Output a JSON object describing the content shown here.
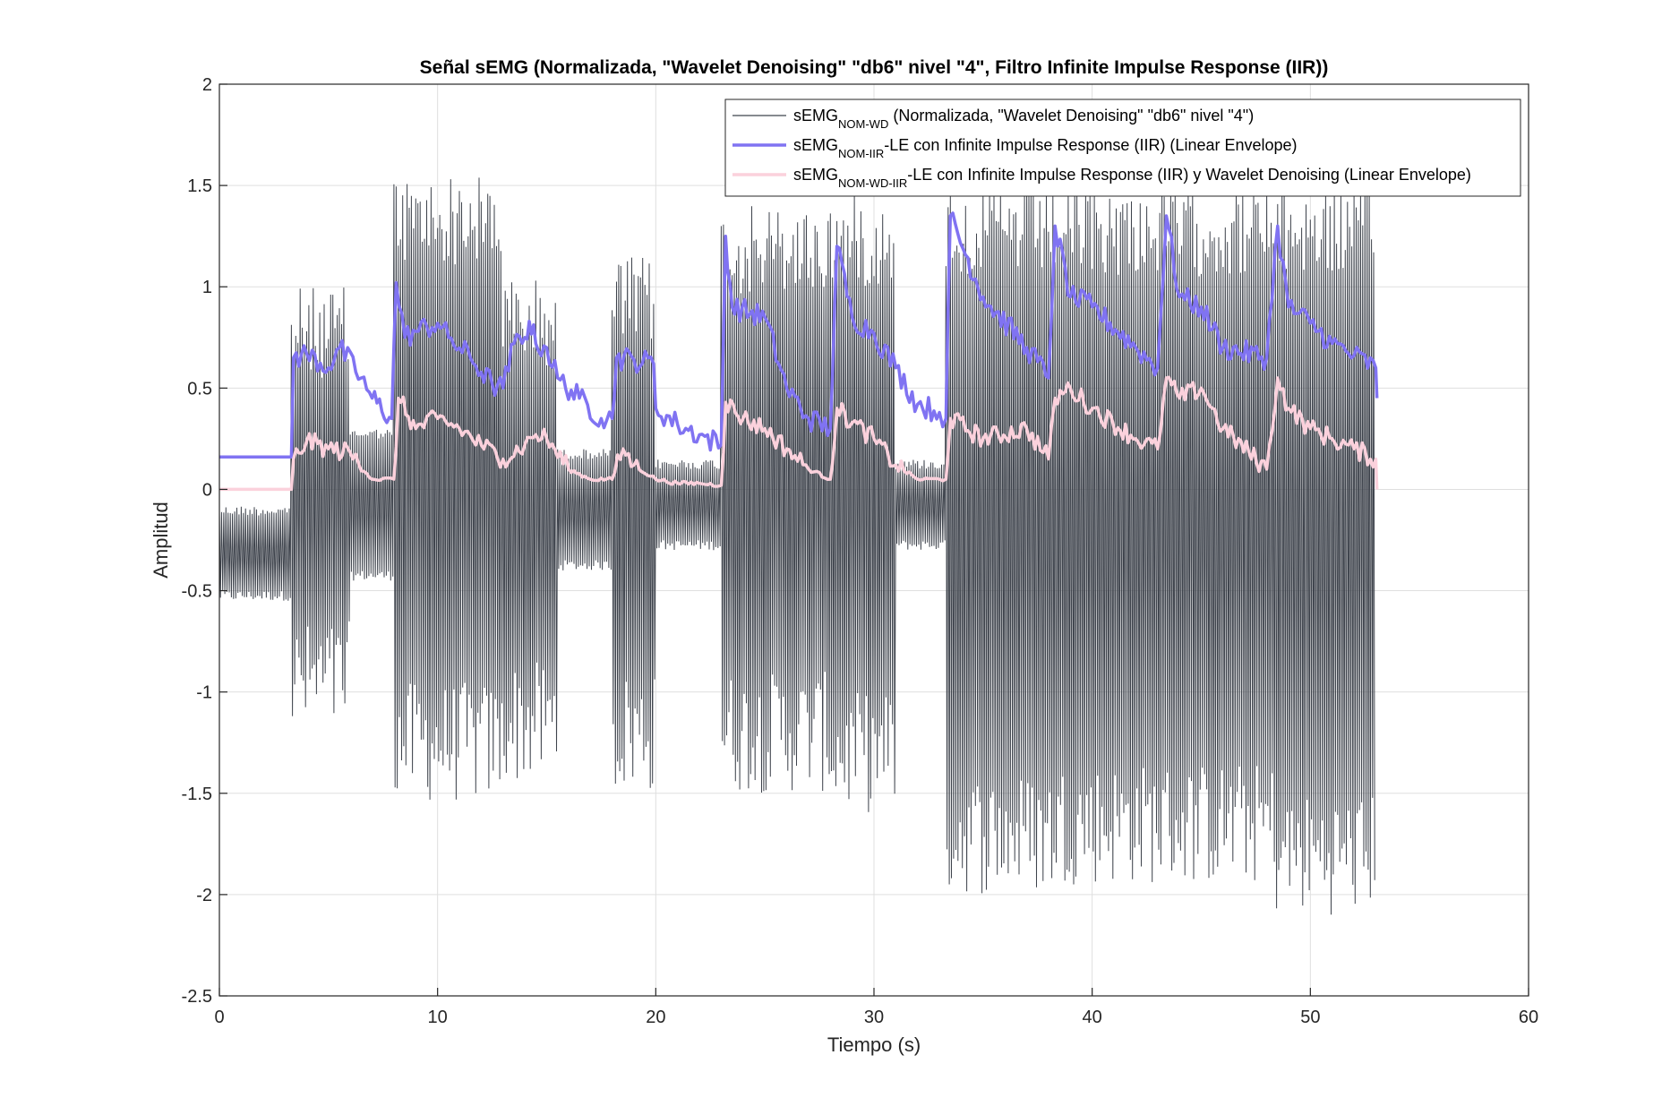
{
  "chart_data": {
    "type": "line",
    "title": "Señal sEMG (Normalizada, \"Wavelet Denoising\" \"db6\" nivel \"4\", Filtro Infinite Impulse Response (IIR))",
    "xlabel": "Tiempo (s)",
    "ylabel": "Amplitud",
    "xlim": [
      0,
      60
    ],
    "ylim": [
      -2.5,
      2
    ],
    "xticks": [
      0,
      10,
      20,
      30,
      40,
      50,
      60
    ],
    "xtick_labels": [
      "0",
      "10",
      "20",
      "30",
      "40",
      "50",
      "60"
    ],
    "yticks": [
      -2.5,
      -2,
      -1.5,
      -1,
      -0.5,
      0,
      0.5,
      1,
      1.5,
      2
    ],
    "ytick_labels": [
      "-2.5",
      "-2",
      "-1.5",
      "-1",
      "-0.5",
      "0",
      "0.5",
      "1",
      "1.5",
      "2"
    ],
    "grid": true,
    "legend_position": "top-right",
    "series": [
      {
        "name": "sEMG_NOM-WD (Normalizada, \"Wavelet Denoising\" \"db6\" nivel \"4\")",
        "legend": {
          "base": "sEMG",
          "sub": "NOM-WD",
          "rest": " (Normalizada, \"Wavelet Denoising\" \"db6\" nivel \"4\")"
        },
        "color": "#3f444d",
        "style": "thin",
        "bursts": [
          {
            "x": [
              0.0,
              3.3
            ],
            "hi": -0.08,
            "lo": -0.55
          },
          {
            "x": [
              3.3,
              6.0
            ],
            "hi": 1.0,
            "lo": -1.25
          },
          {
            "x": [
              6.0,
              8.0
            ],
            "hi": 0.3,
            "lo": -0.45
          },
          {
            "x": [
              8.0,
              13.0
            ],
            "hi": 1.55,
            "lo": -1.55
          },
          {
            "x": [
              13.0,
              15.5
            ],
            "hi": 1.05,
            "lo": -1.45
          },
          {
            "x": [
              15.5,
              18.0
            ],
            "hi": 0.2,
            "lo": -0.4
          },
          {
            "x": [
              18.0,
              20.0
            ],
            "hi": 1.15,
            "lo": -1.5
          },
          {
            "x": [
              20.0,
              23.0
            ],
            "hi": 0.15,
            "lo": -0.3
          },
          {
            "x": [
              23.0,
              28.0
            ],
            "hi": 1.4,
            "lo": -1.5
          },
          {
            "x": [
              28.0,
              31.0
            ],
            "hi": 1.45,
            "lo": -1.6
          },
          {
            "x": [
              31.0,
              33.3
            ],
            "hi": 0.15,
            "lo": -0.3
          },
          {
            "x": [
              33.3,
              38.3
            ],
            "hi": 1.5,
            "lo": -2.0
          },
          {
            "x": [
              38.3,
              43.3
            ],
            "hi": 1.5,
            "lo": -1.95
          },
          {
            "x": [
              43.3,
              48.3
            ],
            "hi": 1.5,
            "lo": -1.95
          },
          {
            "x": [
              48.3,
              53.0
            ],
            "hi": 1.5,
            "lo": -2.1
          }
        ]
      },
      {
        "name": "sEMG_NOM-IIR-LE con Infinite Impulse Response (IIR) (Linear Envelope)",
        "legend": {
          "base": "sEMG",
          "sub": "NOM-IIR",
          "rest": "-LE con Infinite Impulse Response (IIR) (Linear Envelope)"
        },
        "color": "#8073f2",
        "style": "thick",
        "x": [
          0,
          3.3,
          3.4,
          4,
          5,
          5.5,
          6.5,
          7,
          7.9,
          8.1,
          8.5,
          9,
          10,
          10.5,
          11.5,
          12.5,
          13,
          13.5,
          14,
          14.2,
          14.5,
          15,
          15.5,
          16.5,
          17.5,
          18,
          18.2,
          19,
          19.9,
          20,
          21,
          22,
          23,
          23.2,
          23.5,
          25,
          26,
          27,
          28,
          28.3,
          29,
          30,
          31,
          32,
          33,
          33.3,
          33.5,
          35,
          37,
          38,
          38.3,
          39,
          40,
          42,
          43,
          43.4,
          44,
          45,
          46,
          48,
          48.5,
          49,
          50,
          51,
          52,
          53,
          53.05
        ],
        "y": [
          0.16,
          0.16,
          0.65,
          0.67,
          0.6,
          0.7,
          0.55,
          0.45,
          0.35,
          1.02,
          0.75,
          0.78,
          0.82,
          0.75,
          0.65,
          0.52,
          0.5,
          0.72,
          0.75,
          0.83,
          0.72,
          0.7,
          0.55,
          0.45,
          0.35,
          0.35,
          0.65,
          0.64,
          0.62,
          0.4,
          0.32,
          0.27,
          0.22,
          1.25,
          0.9,
          0.85,
          0.5,
          0.35,
          0.3,
          1.2,
          0.85,
          0.77,
          0.6,
          0.42,
          0.38,
          0.35,
          1.35,
          0.95,
          0.7,
          0.55,
          1.3,
          0.95,
          0.9,
          0.7,
          0.6,
          1.35,
          0.95,
          0.9,
          0.7,
          0.65,
          1.3,
          0.9,
          0.82,
          0.72,
          0.66,
          0.6,
          0.45
        ],
        "jitter": 0.12
      },
      {
        "name": "sEMG_NOM-WD-IIR-LE con Infinite Impulse Response (IIR) y Wavelet Denoising (Linear Envelope)",
        "legend": {
          "base": "sEMG",
          "sub": "NOM-WD-IIR",
          "rest": "-LE con Infinite Impulse Response (IIR) y Wavelet Denoising (Linear Envelope)"
        },
        "color": "#fbd1dc",
        "style": "thick",
        "x": [
          0,
          3.3,
          3.4,
          4,
          5,
          6,
          7,
          8,
          8.2,
          9,
          10,
          11,
          12,
          13,
          14,
          14.5,
          15,
          16,
          17,
          18,
          18.5,
          19,
          20,
          21,
          22,
          23,
          23.2,
          24,
          25,
          26,
          27,
          28,
          28.3,
          29,
          30,
          31,
          32,
          33,
          33.3,
          33.5,
          35,
          37,
          38,
          38.3,
          39,
          40,
          42,
          43,
          43.4,
          44,
          45,
          46,
          48,
          48.5,
          49,
          50,
          51,
          52,
          53,
          53.05
        ],
        "y": [
          0,
          0,
          0.15,
          0.24,
          0.2,
          0.18,
          0.05,
          0.05,
          0.45,
          0.3,
          0.35,
          0.3,
          0.22,
          0.15,
          0.22,
          0.27,
          0.25,
          0.1,
          0.05,
          0.05,
          0.2,
          0.12,
          0.05,
          0.03,
          0.03,
          0.02,
          0.43,
          0.35,
          0.3,
          0.2,
          0.1,
          0.05,
          0.4,
          0.33,
          0.25,
          0.12,
          0.05,
          0.05,
          0.05,
          0.35,
          0.25,
          0.3,
          0.15,
          0.45,
          0.5,
          0.4,
          0.25,
          0.2,
          0.55,
          0.45,
          0.5,
          0.3,
          0.1,
          0.55,
          0.4,
          0.3,
          0.25,
          0.2,
          0.15,
          0.0
        ],
        "jitter": 0.1
      }
    ]
  }
}
